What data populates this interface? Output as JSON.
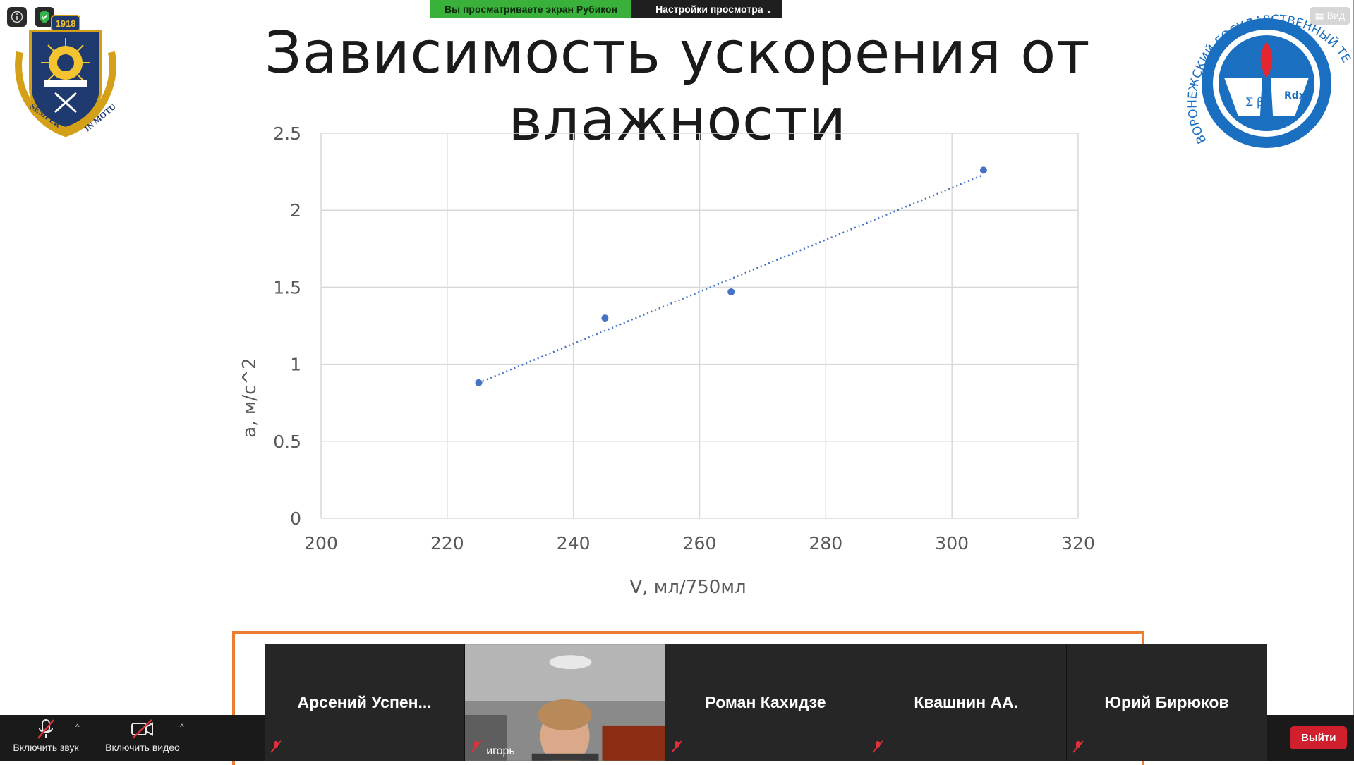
{
  "share_banner": {
    "viewing_text": "Вы просматриваете экран Рубикон",
    "view_options_label": "Настройки просмотра"
  },
  "view_button_label": "Вид",
  "slide": {
    "title": "Зависимость ускорения от влажности"
  },
  "logos": {
    "left_emblem_text_1": "SEMPER",
    "left_emblem_text_2": "IN MOTU",
    "left_emblem_year": "1918",
    "right_emblem_text": "ВОРОНЕЖСКИЙ ГОСУДАРСТВЕННЫЙ ТЕХНИЧЕСКИЙ УНИВЕРСИТЕТ"
  },
  "chart_data": {
    "type": "scatter",
    "title": "",
    "xlabel": "V, мл/750мл",
    "ylabel": "a, м/с^2",
    "xlim": [
      200,
      320
    ],
    "ylim": [
      0,
      2.5
    ],
    "x_ticks": [
      "200",
      "220",
      "240",
      "260",
      "280",
      "300",
      "320"
    ],
    "y_ticks": [
      "0",
      "0.5",
      "1",
      "1.5",
      "2",
      "2.5"
    ],
    "grid": true,
    "points": [
      {
        "x": 225,
        "y": 0.88
      },
      {
        "x": 245,
        "y": 1.3
      },
      {
        "x": 265,
        "y": 1.47
      },
      {
        "x": 305,
        "y": 2.26
      }
    ],
    "trendline": {
      "style": "dotted",
      "from": {
        "x": 225,
        "y": 0.88
      },
      "to": {
        "x": 305,
        "y": 2.23
      }
    },
    "colors": {
      "points": "#4472c4",
      "grid": "#d9d9d9"
    }
  },
  "participants": [
    {
      "name": "Арсений  Успен...",
      "video": false,
      "muted": true
    },
    {
      "name": "игорь",
      "video": true,
      "muted": true
    },
    {
      "name": "Роман Кахидзе",
      "video": false,
      "muted": true
    },
    {
      "name": "Квашнин АА.",
      "video": false,
      "muted": true
    },
    {
      "name": "Юрий Бирюков",
      "video": false,
      "muted": true
    }
  ],
  "controls": {
    "audio_label": "Включить звук",
    "video_label": "Включить видео",
    "leave_label": "Выйти"
  },
  "colors": {
    "share_green": "#3ab13a",
    "accent_orange": "#ec7d31",
    "leave_red": "#d0202e"
  }
}
